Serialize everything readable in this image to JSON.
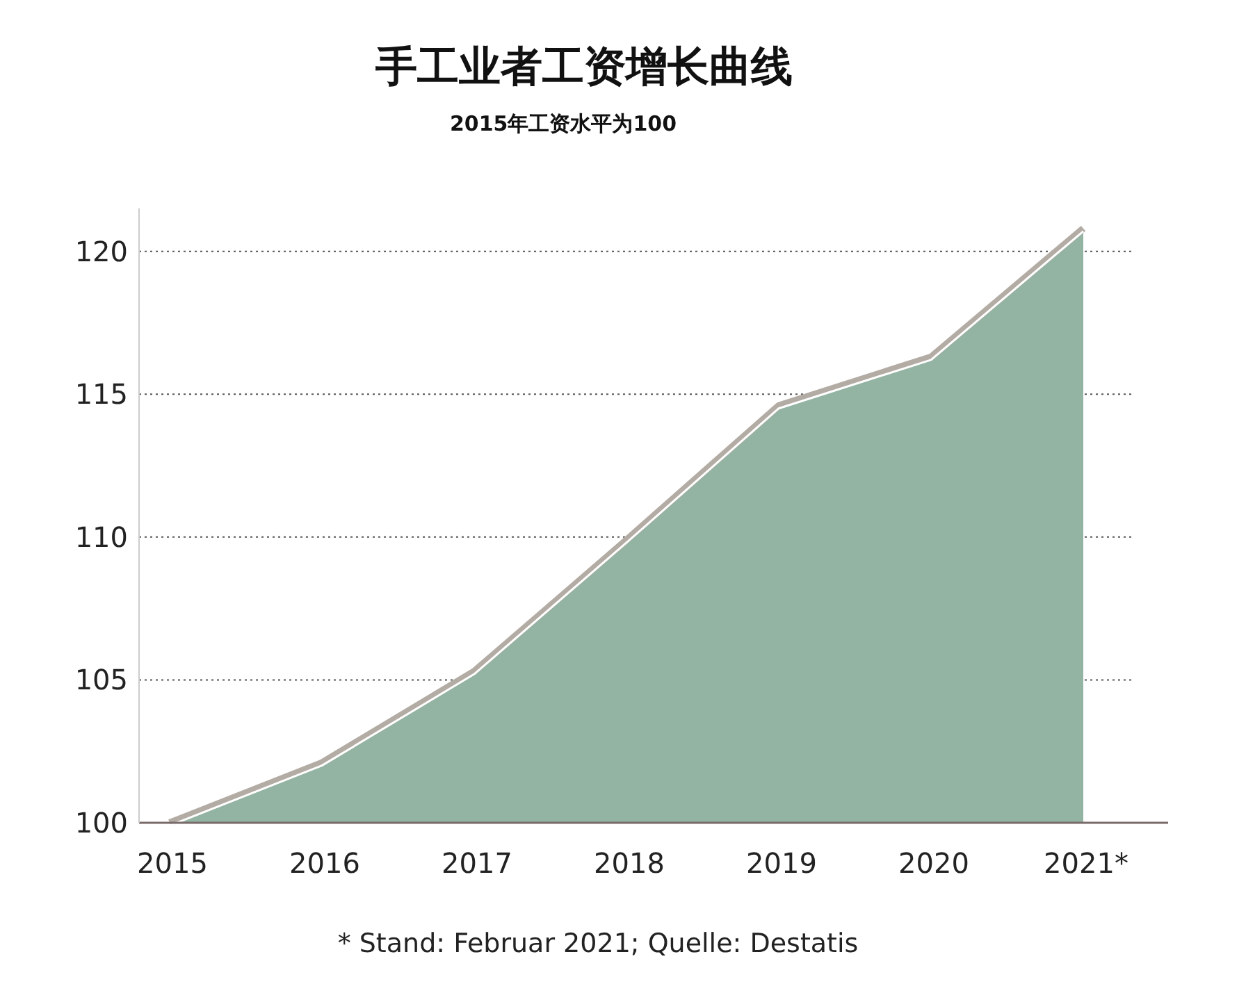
{
  "chart_data": {
    "type": "area",
    "title": "手工业者工资增长曲线",
    "subtitle": "2015年工资水平为100",
    "categories": [
      "2015",
      "2016",
      "2017",
      "2018",
      "2019",
      "2020",
      "2021*"
    ],
    "series": [
      {
        "color": "#93b3a3",
        "values": [
          100,
          102.1,
          105.3,
          109.9,
          114.6,
          116.3,
          120.8
        ]
      }
    ],
    "ylim": [
      100,
      121.5
    ],
    "yticks": [
      100,
      105,
      110,
      115,
      120
    ],
    "grid": "y",
    "annotations": [
      "* Stand: Februar 2021; Quelle: Destatis"
    ]
  }
}
